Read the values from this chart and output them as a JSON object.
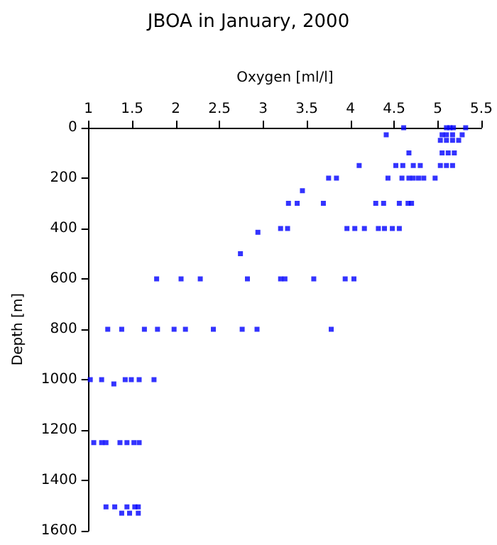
{
  "chart_data": {
    "type": "scatter",
    "title": "JBOA in January, 2000",
    "xlabel": "Oxygen [ml/l]",
    "ylabel": "Depth [m]",
    "xlim": [
      1,
      5.5
    ],
    "xticks": [
      1,
      1.5,
      2,
      2.5,
      3,
      3.5,
      4,
      4.5,
      5,
      5.5
    ],
    "ylim": [
      1600,
      0
    ],
    "yticks": [
      0,
      200,
      400,
      600,
      800,
      1000,
      1200,
      1400,
      1600
    ],
    "grid": false,
    "marker": "square",
    "series": [
      {
        "color": "#0000ff",
        "x": [
          4.61,
          5.1,
          5.14,
          5.18,
          5.32,
          4.41,
          5.05,
          5.1,
          5.17,
          5.28,
          5.03,
          5.1,
          5.17,
          5.24,
          4.67,
          5.05,
          5.12,
          5.19,
          4.1,
          4.52,
          4.6,
          4.72,
          4.8,
          5.03,
          5.1,
          5.17,
          3.75,
          3.84,
          4.43,
          4.59,
          4.67,
          4.72,
          4.78,
          4.84,
          4.97,
          3.45,
          3.29,
          3.39,
          3.69,
          4.29,
          4.38,
          4.56,
          4.66,
          4.7,
          3.2,
          3.28,
          3.96,
          4.05,
          4.16,
          4.32,
          4.39,
          4.48,
          4.56,
          2.94,
          2.74,
          1.78,
          2.06,
          2.28,
          2.82,
          3.2,
          3.25,
          3.58,
          3.94,
          4.04,
          1.22,
          1.38,
          1.64,
          1.79,
          1.98,
          2.11,
          2.43,
          2.76,
          2.93,
          3.78,
          1.02,
          1.15,
          1.29,
          1.42,
          1.49,
          1.58,
          1.75,
          1.06,
          1.15,
          1.2,
          1.36,
          1.44,
          1.52,
          1.58,
          1.2,
          1.3,
          1.44,
          1.53,
          1.57,
          1.38,
          1.47,
          1.57
        ],
        "values": [
          0,
          0,
          0,
          0,
          0,
          28,
          28,
          28,
          28,
          28,
          50,
          50,
          50,
          50,
          100,
          100,
          100,
          100,
          150,
          150,
          150,
          150,
          150,
          150,
          150,
          150,
          200,
          200,
          200,
          200,
          200,
          200,
          200,
          200,
          200,
          250,
          300,
          300,
          300,
          300,
          300,
          300,
          300,
          300,
          400,
          400,
          400,
          400,
          400,
          400,
          400,
          400,
          400,
          415,
          500,
          600,
          600,
          600,
          600,
          600,
          600,
          600,
          600,
          600,
          800,
          800,
          800,
          800,
          800,
          800,
          800,
          800,
          800,
          800,
          1000,
          1000,
          1017,
          1000,
          1000,
          1000,
          1000,
          1250,
          1250,
          1250,
          1250,
          1250,
          1250,
          1250,
          1505,
          1505,
          1505,
          1505,
          1505,
          1530,
          1530,
          1530
        ]
      }
    ]
  }
}
